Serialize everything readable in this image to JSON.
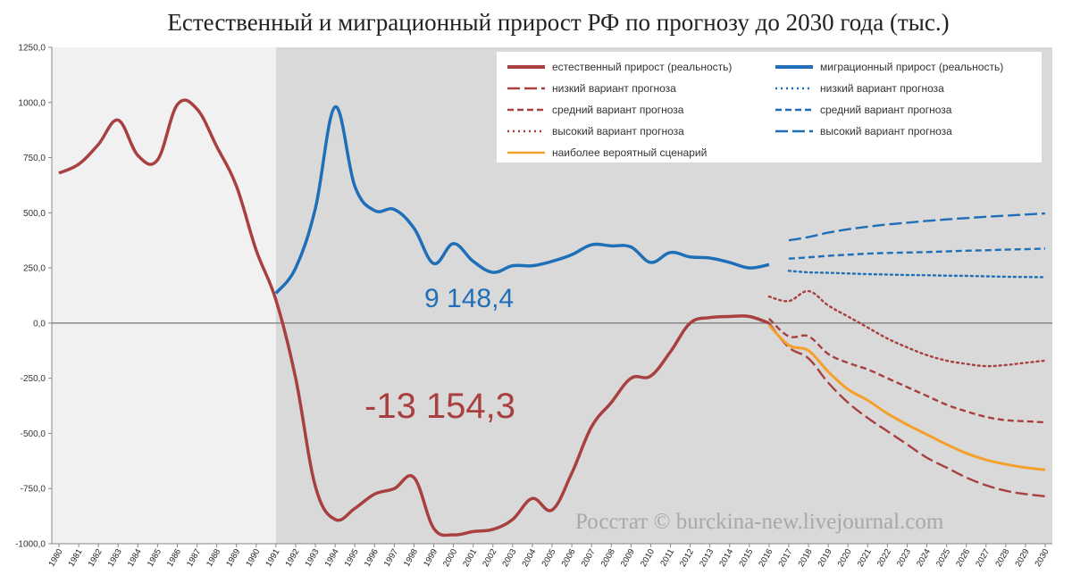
{
  "chart_data": {
    "type": "line",
    "title": "Естественный и миграционный прирост РФ по прогнозу до 2030 года (тыс.)",
    "ylim": [
      -1000,
      1250
    ],
    "yticks": [
      "1250,0",
      "1000,0",
      "750,0",
      "500,0",
      "250,0",
      "0,0",
      "-250,0",
      "-500,0",
      "-750,0",
      "-1000,0"
    ],
    "ytick_values": [
      1250,
      1000,
      750,
      500,
      250,
      0,
      -250,
      -500,
      -750,
      -1000
    ],
    "x_categories": [
      "1980",
      "1981",
      "1982",
      "1983",
      "1984",
      "1985",
      "1986",
      "1987",
      "1988",
      "1989",
      "1990",
      "1991",
      "1992",
      "1993",
      "1994",
      "1995",
      "1996",
      "1997",
      "1998",
      "1999",
      "2000",
      "2001",
      "2002",
      "2003",
      "2004",
      "2005",
      "2006",
      "2007",
      "2008",
      "2009",
      "2010",
      "2011",
      "2012",
      "2013",
      "2014",
      "2015",
      "2016",
      "2017",
      "2018",
      "2019",
      "2020",
      "2021",
      "2022",
      "2023",
      "2024",
      "2025",
      "2026",
      "2027",
      "2028",
      "2029",
      "2030"
    ],
    "grid": false,
    "legend_position": "top-right",
    "shaded_region": {
      "from": 1991,
      "to": 2030
    },
    "series": [
      {
        "name": "естественный прирост (реальность)",
        "color": "#a84040",
        "style": "solid",
        "width": 3.5,
        "x": [
          1980,
          1981,
          1982,
          1983,
          1984,
          1985,
          1986,
          1987,
          1988,
          1989,
          1990,
          1991,
          1992,
          1993,
          1994,
          1995,
          1996,
          1997,
          1998,
          1999,
          2000,
          2001,
          2002,
          2003,
          2004,
          2005,
          2006,
          2007,
          2008,
          2009,
          2010,
          2011,
          2012,
          2013,
          2014,
          2015,
          2016
        ],
        "y": [
          680,
          720,
          810,
          920,
          760,
          740,
          990,
          970,
          800,
          620,
          330,
          105,
          -250,
          -740,
          -890,
          -840,
          -775,
          -750,
          -700,
          -930,
          -960,
          -945,
          -935,
          -890,
          -795,
          -847,
          -680,
          -470,
          -360,
          -250,
          -240,
          -130,
          0,
          25,
          30,
          30,
          0
        ]
      },
      {
        "name": "миграционный прирост (реальность)",
        "color": "#1f6fb8",
        "style": "solid",
        "width": 3.5,
        "x": [
          1991,
          1992,
          1993,
          1994,
          1995,
          1996,
          1997,
          1998,
          1999,
          2000,
          2001,
          2002,
          2003,
          2004,
          2005,
          2006,
          2007,
          2008,
          2009,
          2010,
          2011,
          2012,
          2013,
          2014,
          2015,
          2016
        ],
        "y": [
          135,
          250,
          520,
          980,
          620,
          510,
          515,
          430,
          270,
          360,
          280,
          230,
          260,
          260,
          280,
          310,
          355,
          350,
          345,
          275,
          320,
          300,
          295,
          275,
          250,
          265
        ]
      },
      {
        "name": "низкий вариант прогноза",
        "group": "естественный",
        "color": "#a84040",
        "style": "longdash",
        "x": [
          2016,
          2017,
          2018,
          2019,
          2020,
          2021,
          2022,
          2023,
          2024,
          2025,
          2026,
          2027,
          2028,
          2029,
          2030
        ],
        "y": [
          0,
          -110,
          -160,
          -270,
          -360,
          -430,
          -490,
          -550,
          -610,
          -655,
          -700,
          -735,
          -760,
          -775,
          -785
        ]
      },
      {
        "name": "средний вариант прогноза",
        "group": "естественный",
        "color": "#a84040",
        "style": "dash",
        "x": [
          2016,
          2017,
          2018,
          2019,
          2020,
          2021,
          2022,
          2023,
          2024,
          2025,
          2026,
          2027,
          2028,
          2029,
          2030
        ],
        "y": [
          20,
          -60,
          -60,
          -140,
          -180,
          -210,
          -250,
          -290,
          -330,
          -370,
          -400,
          -425,
          -440,
          -445,
          -450
        ]
      },
      {
        "name": "высокий вариант прогноза",
        "group": "естественный",
        "color": "#a84040",
        "style": "dot",
        "x": [
          2016,
          2017,
          2018,
          2019,
          2020,
          2021,
          2022,
          2023,
          2024,
          2025,
          2026,
          2027,
          2028,
          2029,
          2030
        ],
        "y": [
          120,
          100,
          145,
          80,
          30,
          -20,
          -70,
          -110,
          -145,
          -170,
          -185,
          -195,
          -190,
          -180,
          -170
        ]
      },
      {
        "name": "наиболее вероятный сценарий",
        "color": "#f5a02a",
        "style": "solid",
        "x": [
          2016,
          2017,
          2018,
          2019,
          2020,
          2021,
          2022,
          2023,
          2024,
          2025,
          2026,
          2027,
          2028,
          2029,
          2030
        ],
        "y": [
          -10,
          -100,
          -125,
          -220,
          -300,
          -350,
          -410,
          -460,
          -505,
          -550,
          -590,
          -620,
          -640,
          -655,
          -665
        ]
      },
      {
        "name": "низкий вариант прогноза",
        "group": "миграционный",
        "color": "#1f6fb8",
        "style": "dot",
        "x": [
          2017,
          2018,
          2019,
          2020,
          2021,
          2022,
          2023,
          2024,
          2025,
          2026,
          2027,
          2028,
          2029,
          2030
        ],
        "y": [
          237,
          230,
          228,
          225,
          222,
          220,
          218,
          217,
          215,
          214,
          212,
          210,
          209,
          208
        ]
      },
      {
        "name": "средний вариант прогноза",
        "group": "миграционный",
        "color": "#1f6fb8",
        "style": "dash",
        "x": [
          2017,
          2018,
          2019,
          2020,
          2021,
          2022,
          2023,
          2024,
          2025,
          2026,
          2027,
          2028,
          2029,
          2030
        ],
        "y": [
          292,
          298,
          305,
          310,
          315,
          318,
          320,
          322,
          325,
          328,
          330,
          333,
          335,
          338
        ]
      },
      {
        "name": "высокий вариант прогноза",
        "group": "миграционный",
        "color": "#1f6fb8",
        "style": "longdash",
        "x": [
          2017,
          2018,
          2019,
          2020,
          2021,
          2022,
          2023,
          2024,
          2025,
          2026,
          2027,
          2028,
          2029,
          2030
        ],
        "y": [
          375,
          390,
          410,
          425,
          437,
          447,
          455,
          463,
          470,
          476,
          482,
          487,
          492,
          497
        ]
      }
    ],
    "annotations": [
      {
        "text": "9 148,4",
        "color": "#1f6fb8"
      },
      {
        "text": "-13 154,3",
        "color": "#a84040"
      }
    ],
    "credit": "Росстат © burckina-new.livejournal.com"
  }
}
